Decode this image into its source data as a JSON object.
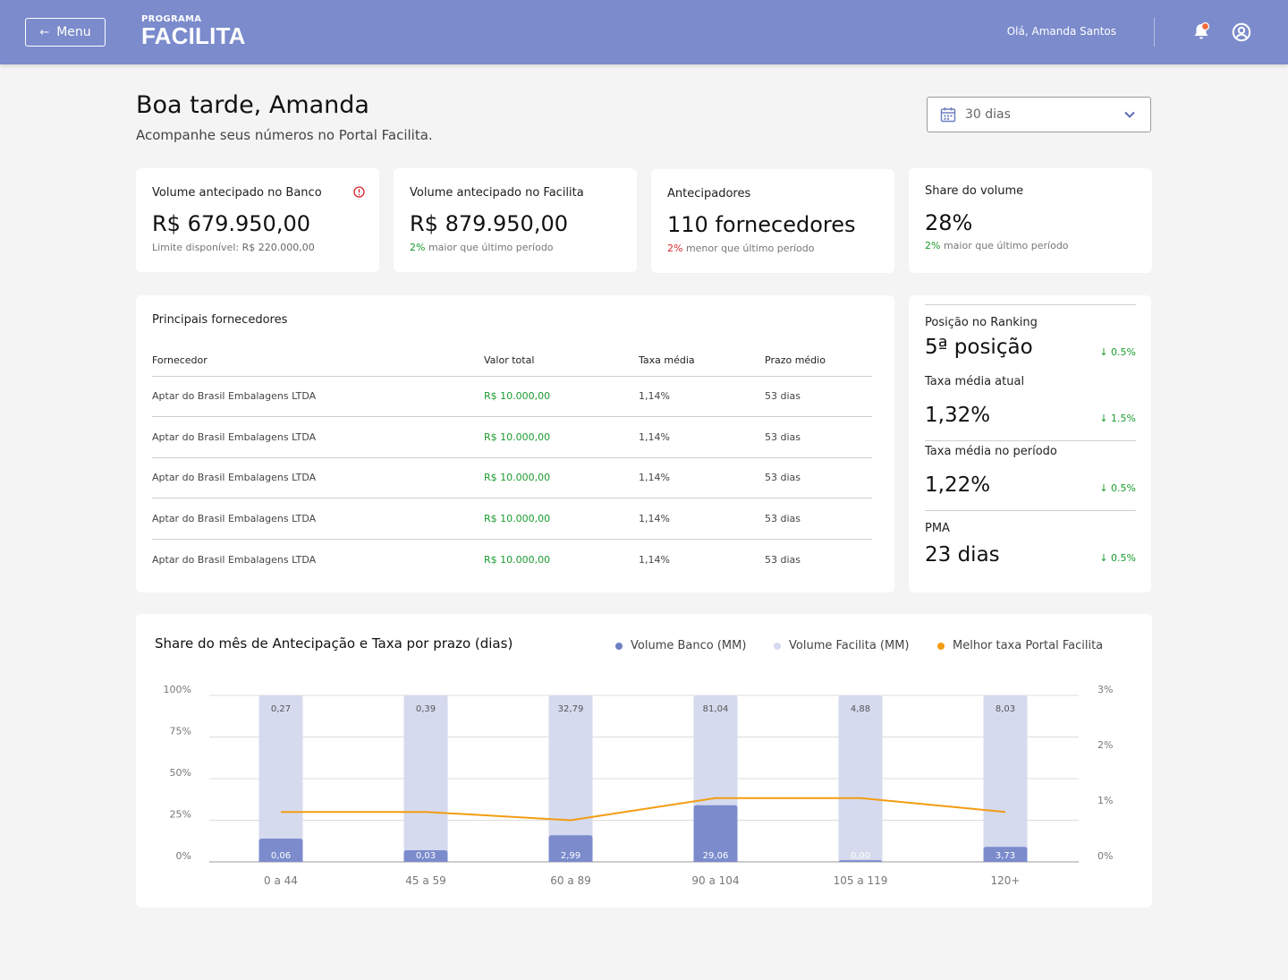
{
  "header": {
    "menu_label": "Menu",
    "logo_small": "PROGRAMA",
    "logo_big": "FACILITA",
    "greeting_user": "Olá, Amanda Santos"
  },
  "page": {
    "greeting": "Boa tarde, Amanda",
    "subtitle": "Acompanhe seus números no Portal Facilita.",
    "period_value": "30 dias"
  },
  "kpis": [
    {
      "label": "Volume antecipado no Banco",
      "value": "R$ 679.950,00",
      "note_prefix": "Limite disponível: ",
      "note_strong": "R$ 220.000,00"
    },
    {
      "label": "Volume antecipado no Facilita",
      "value": "R$ 879.950,00",
      "delta": "2%",
      "delta_text": " maior que último período"
    },
    {
      "label": "Antecipadores",
      "value": "110 fornecedores",
      "delta": "2%",
      "delta_text": " menor que último período"
    },
    {
      "label": "Share do volume",
      "value": "28%",
      "delta": "2%",
      "delta_text": " maior que último período"
    }
  ],
  "suppliers": {
    "title": "Principais fornecedores",
    "columns": [
      "Fornecedor",
      "Valor total",
      "Taxa média",
      "Prazo médio"
    ],
    "rows": [
      [
        "Aptar do Brasil Embalagens LTDA",
        "R$ 10.000,00",
        "1,14%",
        "53 dias"
      ],
      [
        "Aptar do Brasil Embalagens LTDA",
        "R$ 10.000,00",
        "1,14%",
        "53 dias"
      ],
      [
        "Aptar do Brasil Embalagens LTDA",
        "R$ 10.000,00",
        "1,14%",
        "53 dias"
      ],
      [
        "Aptar do Brasil Embalagens LTDA",
        "R$ 10.000,00",
        "1,14%",
        "53 dias"
      ],
      [
        "Aptar do Brasil Embalagens LTDA",
        "R$ 10.000,00",
        "1,14%",
        "53 dias"
      ]
    ]
  },
  "ranking": [
    {
      "label": "Posição no Ranking",
      "value": "5ª posição",
      "delta": "↓ 0.5%"
    },
    {
      "label": "Taxa média atual",
      "value": "1,32%",
      "delta": "↓ 1.5%"
    },
    {
      "label": "Taxa média no período",
      "value": "1,22%",
      "delta": "↓ 0.5%"
    },
    {
      "label": "PMA",
      "value": "23 dias",
      "delta": "↓ 0.5%"
    }
  ],
  "colors": {
    "header": "#7b8bcc",
    "banco": "#7b8bcc",
    "facilita": "#d5daee",
    "taxa": "#f39c12",
    "positive": "#1a9b2e",
    "negative": "#d9262c"
  },
  "chart_data": {
    "type": "bar",
    "title": "Share do mês de Antecipação e Taxa por prazo (dias)",
    "categories": [
      "0 a 44",
      "45 a 59",
      "60 a 89",
      "90 a 104",
      "105 a 119",
      "120+"
    ],
    "series": [
      {
        "name": "Volume Banco (MM)",
        "values": [
          0.06,
          0.03,
          2.99,
          29.06,
          0.0,
          3.73
        ],
        "labels": [
          "0,06",
          "0,03",
          "2,99",
          "29,06",
          "0,00",
          "3,73"
        ],
        "share_pct": [
          14,
          7,
          16,
          34,
          1,
          9
        ]
      },
      {
        "name": "Volume Facilita (MM)",
        "values": [
          0.27,
          0.39,
          32.79,
          81.04,
          4.88,
          8.03
        ],
        "labels": [
          "0,27",
          "0,39",
          "32,79",
          "81,04",
          "4,88",
          "8,03"
        ],
        "share_pct": [
          100,
          100,
          100,
          100,
          100,
          100
        ]
      },
      {
        "name": "Melhor taxa Portal Facilita",
        "values": [
          0.9,
          0.9,
          0.75,
          1.15,
          1.15,
          0.9
        ],
        "axis": "right"
      }
    ],
    "y_left_ticks": [
      "100%",
      "75%",
      "50%",
      "25%",
      "0%"
    ],
    "y_right_ticks": [
      "3%",
      "2%",
      "1%",
      "0%"
    ],
    "ylim_left": [
      0,
      100
    ],
    "ylim_right": [
      0,
      3
    ],
    "grid": true,
    "legend_position": "top-right"
  }
}
